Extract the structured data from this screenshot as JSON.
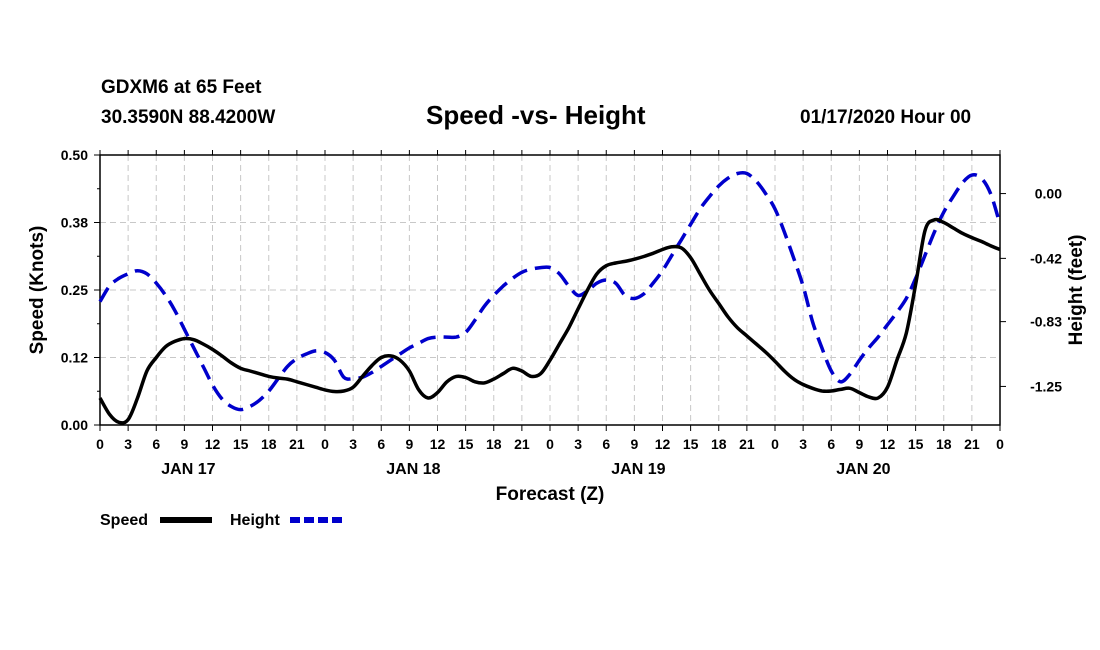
{
  "header": {
    "station_line": "GDXM6 at 65 Feet",
    "coord_line": "30.3590N 88.4200W",
    "title": "Speed -vs- Height",
    "run_info": "01/17/2020 Hour 00"
  },
  "chart_data": {
    "type": "line",
    "title": "Speed -vs- Height",
    "xlabel": "Forecast (Z)",
    "ylabel": "Speed (Knots)",
    "y2label": "Height (feet)",
    "x_range": [
      0,
      96
    ],
    "x_unit": "hours since 01/17/2020 00Z",
    "x_tick_hours": [
      0,
      3,
      6,
      9,
      12,
      15,
      18,
      21,
      24,
      27,
      30,
      33,
      36,
      39,
      42,
      45,
      48,
      51,
      54,
      57,
      60,
      63,
      66,
      69,
      72,
      75,
      78,
      81,
      84,
      87,
      90,
      93,
      96
    ],
    "x_tick_labels": [
      "0",
      "3",
      "6",
      "9",
      "12",
      "15",
      "18",
      "21",
      "0",
      "3",
      "6",
      "9",
      "12",
      "15",
      "18",
      "21",
      "0",
      "3",
      "6",
      "9",
      "12",
      "15",
      "18",
      "21",
      "0",
      "3",
      "6",
      "9",
      "12",
      "15",
      "18",
      "21",
      "0"
    ],
    "day_labels": [
      {
        "hour": 9,
        "label": "JAN 17"
      },
      {
        "hour": 33,
        "label": "JAN 18"
      },
      {
        "hour": 57,
        "label": "JAN 19"
      },
      {
        "hour": 81,
        "label": "JAN 20"
      }
    ],
    "y_left": {
      "range": [
        0,
        0.5
      ],
      "ticks": [
        0,
        0.125,
        0.25,
        0.375,
        0.5
      ],
      "tick_labels": [
        "0.00",
        "0.12",
        "0.25",
        "0.38",
        "0.50"
      ]
    },
    "y_right": {
      "range": [
        -1.5,
        0.25
      ],
      "ticks": [
        0.0,
        -0.42,
        -0.83,
        -1.25
      ],
      "tick_labels": [
        "0.00",
        "-0.42",
        "-0.83",
        "-1.25"
      ]
    },
    "grid": true,
    "series": [
      {
        "name": "Speed",
        "axis": "left",
        "color": "#000000",
        "style": "solid",
        "points": [
          [
            0,
            0.05
          ],
          [
            1,
            0.02
          ],
          [
            2,
            0.005
          ],
          [
            3,
            0.01
          ],
          [
            4,
            0.05
          ],
          [
            5,
            0.1
          ],
          [
            6,
            0.125
          ],
          [
            7,
            0.145
          ],
          [
            8,
            0.155
          ],
          [
            9,
            0.16
          ],
          [
            10,
            0.158
          ],
          [
            11,
            0.15
          ],
          [
            12,
            0.14
          ],
          [
            13,
            0.128
          ],
          [
            14,
            0.115
          ],
          [
            15,
            0.105
          ],
          [
            16,
            0.1
          ],
          [
            17,
            0.095
          ],
          [
            18,
            0.09
          ],
          [
            19,
            0.087
          ],
          [
            20,
            0.085
          ],
          [
            21,
            0.08
          ],
          [
            22,
            0.075
          ],
          [
            23,
            0.07
          ],
          [
            24,
            0.065
          ],
          [
            25,
            0.062
          ],
          [
            26,
            0.063
          ],
          [
            27,
            0.07
          ],
          [
            28,
            0.09
          ],
          [
            29,
            0.11
          ],
          [
            30,
            0.125
          ],
          [
            31,
            0.128
          ],
          [
            32,
            0.12
          ],
          [
            33,
            0.1
          ],
          [
            34,
            0.065
          ],
          [
            35,
            0.05
          ],
          [
            36,
            0.06
          ],
          [
            37,
            0.08
          ],
          [
            38,
            0.09
          ],
          [
            39,
            0.088
          ],
          [
            40,
            0.08
          ],
          [
            41,
            0.078
          ],
          [
            42,
            0.085
          ],
          [
            43,
            0.095
          ],
          [
            44,
            0.105
          ],
          [
            45,
            0.1
          ],
          [
            46,
            0.09
          ],
          [
            47,
            0.095
          ],
          [
            48,
            0.12
          ],
          [
            49,
            0.15
          ],
          [
            50,
            0.18
          ],
          [
            51,
            0.215
          ],
          [
            52,
            0.25
          ],
          [
            53,
            0.28
          ],
          [
            54,
            0.295
          ],
          [
            55,
            0.3
          ],
          [
            56,
            0.303
          ],
          [
            57,
            0.307
          ],
          [
            58,
            0.312
          ],
          [
            59,
            0.318
          ],
          [
            60,
            0.325
          ],
          [
            61,
            0.33
          ],
          [
            62,
            0.328
          ],
          [
            63,
            0.31
          ],
          [
            64,
            0.28
          ],
          [
            65,
            0.25
          ],
          [
            66,
            0.225
          ],
          [
            67,
            0.2
          ],
          [
            68,
            0.18
          ],
          [
            69,
            0.165
          ],
          [
            70,
            0.15
          ],
          [
            71,
            0.135
          ],
          [
            72,
            0.118
          ],
          [
            73,
            0.1
          ],
          [
            74,
            0.085
          ],
          [
            75,
            0.075
          ],
          [
            76,
            0.068
          ],
          [
            77,
            0.063
          ],
          [
            78,
            0.063
          ],
          [
            79,
            0.066
          ],
          [
            80,
            0.068
          ],
          [
            81,
            0.06
          ],
          [
            82,
            0.052
          ],
          [
            83,
            0.05
          ],
          [
            84,
            0.07
          ],
          [
            85,
            0.12
          ],
          [
            86,
            0.17
          ],
          [
            87,
            0.26
          ],
          [
            88,
            0.36
          ],
          [
            89,
            0.38
          ],
          [
            90,
            0.375
          ],
          [
            91,
            0.365
          ],
          [
            92,
            0.355
          ],
          [
            93,
            0.347
          ],
          [
            94,
            0.34
          ],
          [
            95,
            0.332
          ],
          [
            96,
            0.325
          ]
        ]
      },
      {
        "name": "Height",
        "axis": "right",
        "color": "#0000cc",
        "style": "dashed",
        "points": [
          [
            0,
            -0.7
          ],
          [
            1,
            -0.6
          ],
          [
            2,
            -0.55
          ],
          [
            3,
            -0.52
          ],
          [
            4,
            -0.5
          ],
          [
            5,
            -0.52
          ],
          [
            6,
            -0.58
          ],
          [
            7,
            -0.66
          ],
          [
            8,
            -0.76
          ],
          [
            9,
            -0.88
          ],
          [
            10,
            -1.0
          ],
          [
            11,
            -1.12
          ],
          [
            12,
            -1.24
          ],
          [
            13,
            -1.33
          ],
          [
            14,
            -1.38
          ],
          [
            15,
            -1.4
          ],
          [
            16,
            -1.38
          ],
          [
            17,
            -1.34
          ],
          [
            18,
            -1.28
          ],
          [
            19,
            -1.2
          ],
          [
            20,
            -1.12
          ],
          [
            21,
            -1.07
          ],
          [
            22,
            -1.04
          ],
          [
            23,
            -1.02
          ],
          [
            24,
            -1.03
          ],
          [
            25,
            -1.08
          ],
          [
            26,
            -1.19
          ],
          [
            27,
            -1.2
          ],
          [
            28,
            -1.19
          ],
          [
            29,
            -1.16
          ],
          [
            30,
            -1.12
          ],
          [
            31,
            -1.08
          ],
          [
            32,
            -1.04
          ],
          [
            33,
            -1.0
          ],
          [
            34,
            -0.97
          ],
          [
            35,
            -0.94
          ],
          [
            36,
            -0.93
          ],
          [
            37,
            -0.93
          ],
          [
            38,
            -0.93
          ],
          [
            39,
            -0.9
          ],
          [
            40,
            -0.82
          ],
          [
            41,
            -0.73
          ],
          [
            42,
            -0.66
          ],
          [
            43,
            -0.6
          ],
          [
            44,
            -0.55
          ],
          [
            45,
            -0.51
          ],
          [
            46,
            -0.49
          ],
          [
            47,
            -0.48
          ],
          [
            48,
            -0.48
          ],
          [
            49,
            -0.52
          ],
          [
            50,
            -0.6
          ],
          [
            51,
            -0.66
          ],
          [
            52,
            -0.63
          ],
          [
            53,
            -0.58
          ],
          [
            54,
            -0.56
          ],
          [
            55,
            -0.58
          ],
          [
            56,
            -0.66
          ],
          [
            57,
            -0.68
          ],
          [
            58,
            -0.65
          ],
          [
            59,
            -0.58
          ],
          [
            60,
            -0.5
          ],
          [
            61,
            -0.4
          ],
          [
            62,
            -0.3
          ],
          [
            63,
            -0.2
          ],
          [
            64,
            -0.1
          ],
          [
            65,
            -0.02
          ],
          [
            66,
            0.05
          ],
          [
            67,
            0.1
          ],
          [
            68,
            0.13
          ],
          [
            69,
            0.13
          ],
          [
            70,
            0.08
          ],
          [
            71,
            0.0
          ],
          [
            72,
            -0.1
          ],
          [
            73,
            -0.25
          ],
          [
            74,
            -0.42
          ],
          [
            75,
            -0.6
          ],
          [
            76,
            -0.83
          ],
          [
            77,
            -1.0
          ],
          [
            78,
            -1.15
          ],
          [
            79,
            -1.22
          ],
          [
            80,
            -1.17
          ],
          [
            81,
            -1.08
          ],
          [
            82,
            -1.0
          ],
          [
            83,
            -0.93
          ],
          [
            84,
            -0.85
          ],
          [
            85,
            -0.77
          ],
          [
            86,
            -0.68
          ],
          [
            87,
            -0.55
          ],
          [
            88,
            -0.4
          ],
          [
            89,
            -0.25
          ],
          [
            90,
            -0.12
          ],
          [
            91,
            -0.02
          ],
          [
            92,
            0.07
          ],
          [
            93,
            0.12
          ],
          [
            94,
            0.1
          ],
          [
            95,
            0.0
          ],
          [
            96,
            -0.2
          ]
        ]
      }
    ],
    "legend": [
      {
        "label": "Speed",
        "color": "#000000",
        "style": "solid"
      },
      {
        "label": "Height",
        "color": "#0000cc",
        "style": "dashed"
      }
    ]
  }
}
